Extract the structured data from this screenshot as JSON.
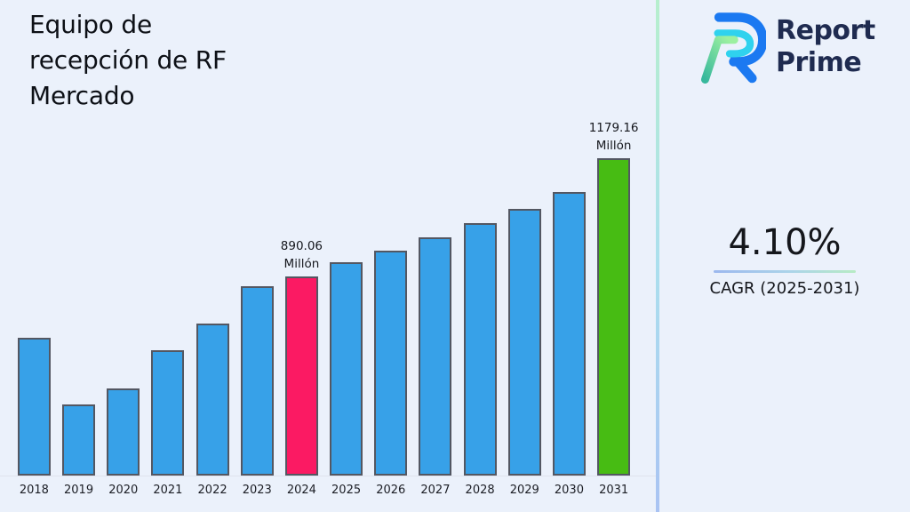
{
  "page": {
    "background_color": "#ebf1fb",
    "divider_gradient": [
      "#b6efcd",
      "#abdfee",
      "#a9c3f3"
    ]
  },
  "header": {
    "title": "Equipo de\nrecepción de RF\nMercado"
  },
  "logo": {
    "name": "Report Prime",
    "line1": "Report",
    "line2": "Prime",
    "text_color": "#1f2b50",
    "mark_colors": {
      "blue": "#1b79f1",
      "cyan": "#2fd2ee",
      "green_dark": "#37b89c",
      "green_light": "#9bf0a0"
    }
  },
  "cagr": {
    "value": "4.10%",
    "caption": "CAGR (2025-2031)"
  },
  "chart_data": {
    "type": "bar",
    "title": "Equipo de recepción de RF Mercado",
    "xlabel": "",
    "ylabel": "",
    "unit": "Millón",
    "grid": false,
    "legend": "none",
    "default_color": "#37a1e8",
    "edge_color": "#535762",
    "ylim_estimate": [
      405,
      1240
    ],
    "categories": [
      "2018",
      "2019",
      "2020",
      "2021",
      "2022",
      "2023",
      "2024",
      "2025",
      "2026",
      "2027",
      "2028",
      "2029",
      "2030",
      "2031"
    ],
    "values": [
      741,
      578,
      617,
      710,
      775,
      867,
      890.06,
      925,
      953,
      986,
      1022,
      1056,
      1098,
      1179.16
    ],
    "estimated_from_pixels": [
      "2018",
      "2019",
      "2020",
      "2021",
      "2022",
      "2023",
      "2025",
      "2026",
      "2027",
      "2028",
      "2029",
      "2030"
    ],
    "bars": [
      {
        "year": "2018",
        "value": 741
      },
      {
        "year": "2019",
        "value": 578
      },
      {
        "year": "2020",
        "value": 617
      },
      {
        "year": "2021",
        "value": 710
      },
      {
        "year": "2022",
        "value": 775
      },
      {
        "year": "2023",
        "value": 867
      },
      {
        "year": "2024",
        "value": 890.06,
        "color": "#fb1a63",
        "label": "890.06\nMillón"
      },
      {
        "year": "2025",
        "value": 925
      },
      {
        "year": "2026",
        "value": 953
      },
      {
        "year": "2027",
        "value": 986
      },
      {
        "year": "2028",
        "value": 1022
      },
      {
        "year": "2029",
        "value": 1056
      },
      {
        "year": "2030",
        "value": 1098
      },
      {
        "year": "2031",
        "value": 1179.16,
        "color": "#47bc13",
        "label": "1179.16\nMillón"
      }
    ]
  }
}
